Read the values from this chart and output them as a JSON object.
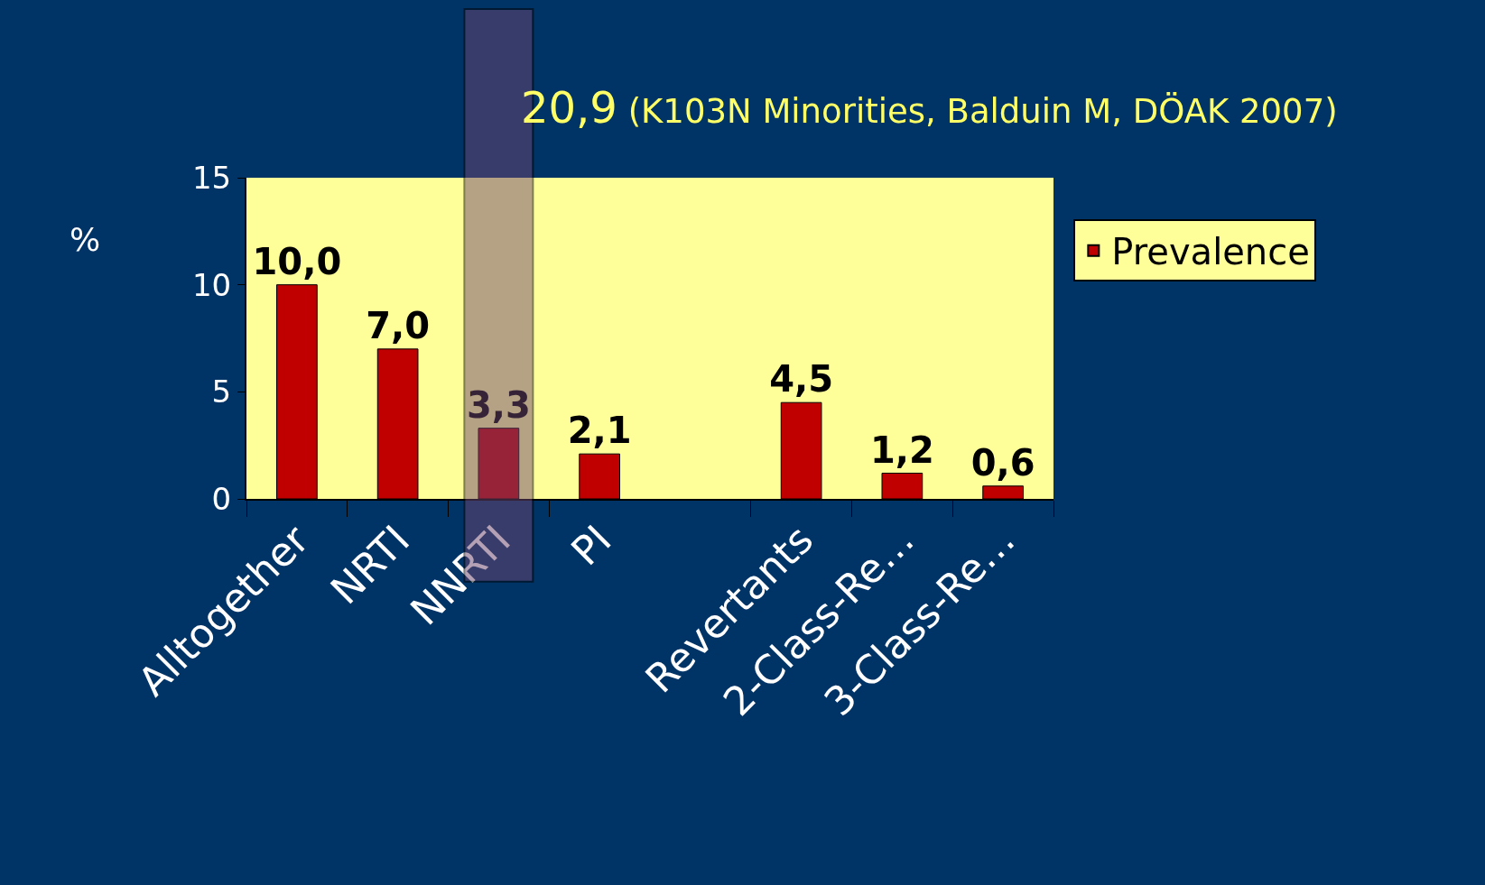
{
  "chart_data": {
    "type": "bar",
    "ylabel": "%",
    "categories": [
      "Alltogether",
      "NRTI",
      "NNRTI",
      "PI",
      null,
      "Revertants",
      "2-Class-Re…",
      "3-Class-Re…"
    ],
    "series": [
      {
        "name": "Prevalence",
        "color": "#c00000",
        "values": [
          10.0,
          7.0,
          3.3,
          2.1,
          null,
          4.5,
          1.2,
          0.6
        ],
        "value_labels": [
          "10,0",
          "7,0",
          "3,3",
          "2,1",
          null,
          "4,5",
          "1,2",
          "0,6"
        ]
      }
    ],
    "bands": [
      {
        "axis": "x",
        "from": "NNRTI",
        "to": "NNRTI",
        "color": "#6e466e"
      }
    ],
    "ylim": [
      0,
      15
    ],
    "yticks": [
      0,
      5,
      10,
      15
    ],
    "grid": false,
    "legend": "right",
    "annotations": [
      "20,9 (K103N Minorities, Balduin M, DÖAK 2007)"
    ]
  }
}
